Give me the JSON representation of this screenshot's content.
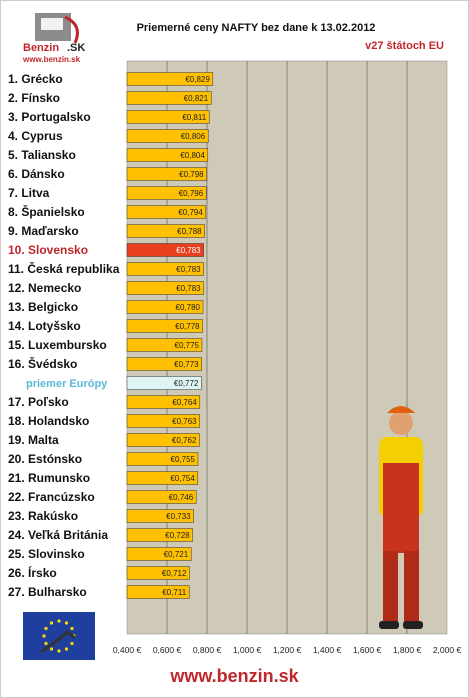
{
  "logo": {
    "brand": "Benzin",
    "suffix": ".SK",
    "url": "www.benzin.sk"
  },
  "footer": {
    "website": "www.benzin.sk"
  },
  "colors": {
    "bar": "#ffc000",
    "highlight": "#e8401c",
    "average": "#dff4f4",
    "plot_bg": "#cfc9b8",
    "highlight_label": "#c0272d",
    "average_label": "#5bb7d6"
  },
  "chart_data": {
    "type": "bar",
    "orientation": "horizontal",
    "title": "Priemerné ceny NAFTY bez dane k 13.02.2012",
    "subtitle": "v27 štátoch EU",
    "xlim": [
      0.4,
      2.0
    ],
    "x_ticks": [
      "0,400 €",
      "0,600 €",
      "0,800 €",
      "1,000 €",
      "1,200 €",
      "1,400 €",
      "1,600 €",
      "1,800 €",
      "2,000 €"
    ],
    "grid": true,
    "categories": [
      "1. Grécko",
      "2. Fínsko",
      "3. Portugalsko",
      "4. Cyprus",
      "5. Taliansko",
      "6. Dánsko",
      "7. Litva",
      "8. Španielsko",
      "9. Maďarsko",
      "10. Slovensko",
      "11. Česká republika",
      "12. Nemecko",
      "13. Belgicko",
      "14. Lotyšsko",
      "15. Luxembursko",
      "16. Švédsko",
      "priemer Európy",
      "17. Poľsko",
      "18. Holandsko",
      "19. Malta",
      "20. Estónsko",
      "21. Rumunsko",
      "22. Francúzsko",
      "23. Rakúsko",
      "24. Veľká Británia",
      "25. Slovinsko",
      "26. Írsko",
      "27. Bulharsko"
    ],
    "values": [
      0.829,
      0.821,
      0.811,
      0.806,
      0.804,
      0.798,
      0.796,
      0.794,
      0.788,
      0.783,
      0.783,
      0.783,
      0.78,
      0.778,
      0.775,
      0.773,
      0.772,
      0.764,
      0.763,
      0.762,
      0.755,
      0.754,
      0.746,
      0.733,
      0.728,
      0.721,
      0.712,
      0.711
    ],
    "value_labels": [
      "€0,829",
      "€0,821",
      "€0,811",
      "€0,806",
      "€0,804",
      "€0,798",
      "€0,796",
      "€0,794",
      "€0,788",
      "€0,783",
      "€0,783",
      "€0,783",
      "€0,780",
      "€0,778",
      "€0,775",
      "€0,773",
      "€0,772",
      "€0,764",
      "€0,763",
      "€0,762",
      "€0,755",
      "€0,754",
      "€0,746",
      "€0,733",
      "€0,728",
      "€0,721",
      "€0,712",
      "€0,711"
    ],
    "highlight_category": "10. Slovensko",
    "average_category": "priemer Európy"
  }
}
